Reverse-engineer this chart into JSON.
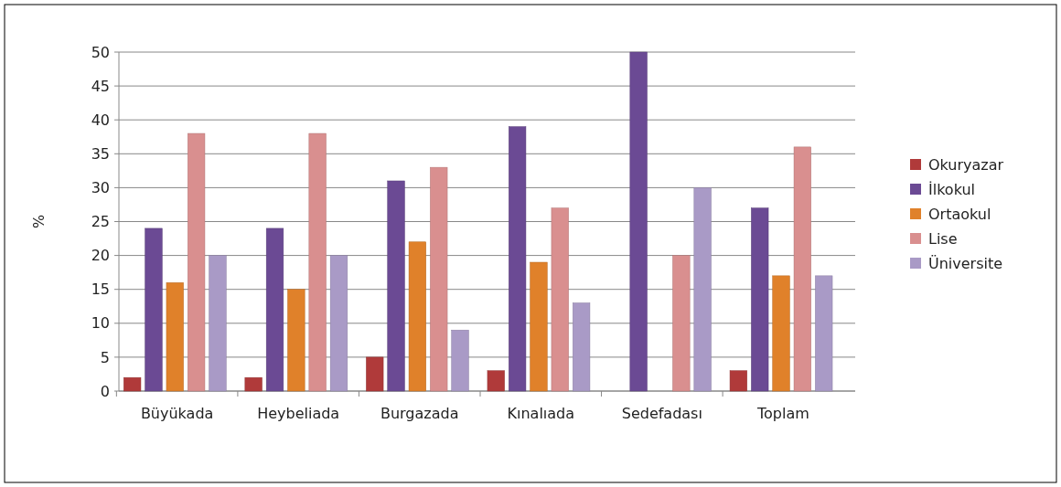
{
  "chart_data": {
    "type": "bar",
    "ylabel": "%",
    "categories": [
      "Büyükada",
      "Heybeliada",
      "Burgazada",
      "Kınalıada",
      "Sedefadası",
      "Toplam"
    ],
    "series": [
      {
        "name": "Okuryazar",
        "color": "#b03a3a",
        "values": [
          2,
          2,
          5,
          3,
          0,
          3
        ]
      },
      {
        "name": "İlkokul",
        "color": "#6b4a94",
        "values": [
          24,
          24,
          31,
          39,
          50,
          27
        ]
      },
      {
        "name": "Ortaokul",
        "color": "#e0812a",
        "values": [
          16,
          15,
          22,
          19,
          0,
          17
        ]
      },
      {
        "name": "Lise",
        "color": "#d98f8f",
        "values": [
          38,
          38,
          33,
          27,
          20,
          36
        ]
      },
      {
        "name": "Üniversite",
        "color": "#a99ac6",
        "values": [
          20,
          20,
          9,
          13,
          30,
          17
        ]
      }
    ],
    "ylim": [
      0,
      50
    ],
    "yticks": [
      0,
      5,
      10,
      15,
      20,
      25,
      30,
      35,
      40,
      45,
      50
    ],
    "grid": "y",
    "legend": "right"
  }
}
